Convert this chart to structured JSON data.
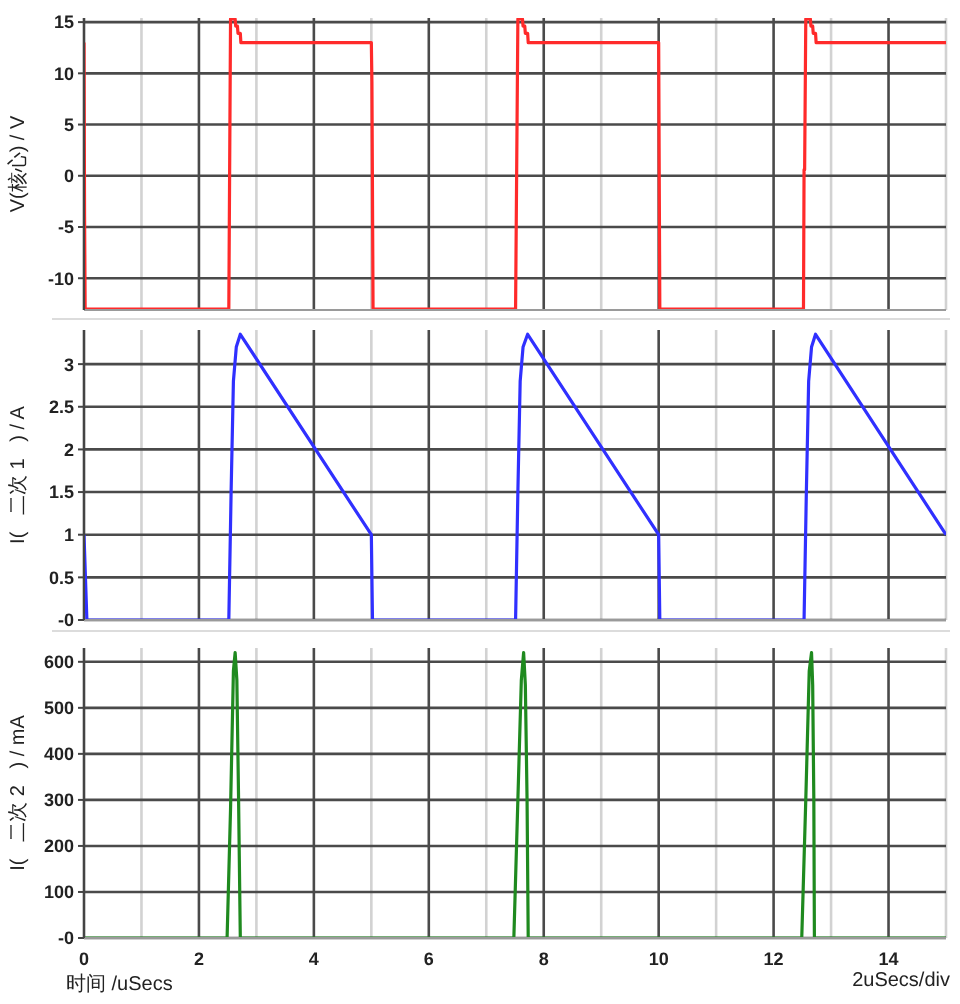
{
  "chart_data": [
    {
      "type": "line",
      "ylabel": "V(核心) / V",
      "x": [
        0,
        0.01,
        0.02,
        2.52,
        2.55,
        2.63,
        2.64,
        2.67,
        2.68,
        2.72,
        2.73,
        5.0,
        5.01,
        5.03,
        7.51,
        7.55,
        7.63,
        7.64,
        7.67,
        7.68,
        7.72,
        7.73,
        10.0,
        10.02,
        12.52,
        12.53,
        12.54,
        12.56,
        12.64,
        12.65,
        12.68,
        12.69,
        12.73,
        12.74,
        15
      ],
      "values": [
        13,
        -4,
        -13,
        -13,
        15.3,
        15.3,
        14.6,
        14.6,
        13.9,
        13.9,
        13,
        13,
        9.2,
        -13,
        -13,
        15.3,
        15.3,
        14.6,
        14.6,
        13.9,
        13.9,
        13,
        13,
        -13,
        -13,
        0.6,
        0.6,
        15.3,
        15.3,
        14.6,
        14.6,
        13.9,
        13.9,
        13,
        13
      ],
      "color": "#ff2a2a",
      "xlim": [
        0,
        15
      ],
      "xticks": [
        0,
        {
          "value": 1,
          "label": null
        },
        2,
        {
          "value": 3,
          "label": null
        },
        4,
        {
          "value": 5,
          "label": null
        },
        6,
        {
          "value": 7,
          "label": null
        },
        8,
        {
          "value": 9,
          "label": null
        },
        10,
        {
          "value": 11,
          "label": null
        },
        12,
        {
          "value": 13,
          "label": null
        },
        14,
        {
          "value": 15,
          "label": null
        }
      ],
      "ylim": [
        -13.1,
        15.4
      ],
      "yticks": [
        -10,
        -5,
        0,
        5,
        10,
        15
      ],
      "grid": true,
      "tick_labels": "y"
    },
    {
      "type": "line",
      "ylabel": "I(   二次 1   ) / A",
      "x": [
        0,
        0.05,
        2.52,
        2.56,
        2.6,
        2.65,
        2.72,
        5.0,
        5.02,
        7.51,
        7.55,
        7.59,
        7.64,
        7.72,
        10.0,
        10.02,
        12.53,
        12.57,
        12.61,
        12.66,
        12.73,
        15
      ],
      "values": [
        1,
        0,
        0,
        1.5,
        2.8,
        3.2,
        3.35,
        1,
        0,
        0,
        1.5,
        2.8,
        3.2,
        3.35,
        1,
        0,
        0,
        1.5,
        2.8,
        3.2,
        3.35,
        1
      ],
      "color": "#3030ff",
      "xlim": [
        0,
        15
      ],
      "xticks": [
        0,
        {
          "value": 1,
          "label": null
        },
        2,
        {
          "value": 3,
          "label": null
        },
        4,
        {
          "value": 5,
          "label": null
        },
        6,
        {
          "value": 7,
          "label": null
        },
        8,
        {
          "value": 9,
          "label": null
        },
        10,
        {
          "value": 11,
          "label": null
        },
        12,
        {
          "value": 13,
          "label": null
        },
        14,
        {
          "value": 15,
          "label": null
        }
      ],
      "ylim": [
        0,
        3.4
      ],
      "yticks": [
        {
          "value": 0,
          "label": "-0"
        },
        0.5,
        1,
        1.5,
        2,
        2.5,
        3
      ],
      "grid": true,
      "tick_labels": "y"
    },
    {
      "type": "line",
      "xlabel": "时间 /uSecs",
      "ylabel": "I(   二次 2   ) / mA",
      "annotations": [
        "2uSecs/div"
      ],
      "x": [
        0,
        2.49,
        2.55,
        2.6,
        2.63,
        2.66,
        2.69,
        2.72,
        7.48,
        7.55,
        7.61,
        7.65,
        7.68,
        7.71,
        7.73,
        12.49,
        12.56,
        12.62,
        12.66,
        12.68,
        12.7,
        12.71,
        15
      ],
      "values": [
        0,
        0,
        280,
        580,
        620,
        560,
        300,
        0,
        0,
        300,
        560,
        620,
        550,
        300,
        0,
        0,
        300,
        580,
        620,
        550,
        300,
        0,
        0
      ],
      "color": "#1f8a1f",
      "xlim": [
        0,
        15
      ],
      "xticks": [
        0,
        {
          "value": 1,
          "label": null
        },
        2,
        {
          "value": 3,
          "label": null
        },
        4,
        {
          "value": 5,
          "label": null
        },
        6,
        {
          "value": 7,
          "label": null
        },
        8,
        {
          "value": 9,
          "label": null
        },
        10,
        {
          "value": 11,
          "label": null
        },
        12,
        {
          "value": 13,
          "label": null
        },
        14,
        {
          "value": 15,
          "label": null
        }
      ],
      "ylim": [
        0,
        630
      ],
      "yticks": [
        {
          "value": 0,
          "label": "-0"
        },
        100,
        200,
        300,
        400,
        500,
        600
      ],
      "grid": true
    }
  ]
}
